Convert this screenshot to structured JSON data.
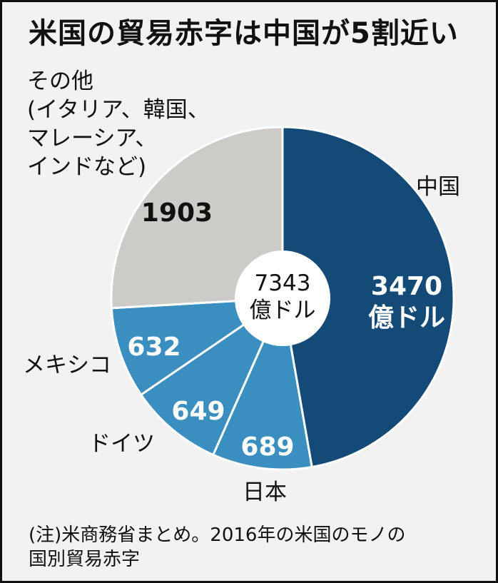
{
  "title": "米国の貿易赤字は中国が5割近い",
  "center_label": {
    "value": "7343",
    "unit": "億ドル"
  },
  "note": [
    "(注)米商務省まとめ。2016年の米国のモノの",
    "国別貿易赤字"
  ],
  "other_label": [
    "その他",
    "(イタリア、韓国、",
    "マレーシア、",
    "インドなど)"
  ],
  "chart_data": {
    "type": "pie",
    "style": "donut",
    "title": "米国の貿易赤字は中国が5割近い",
    "total": 7343,
    "unit": "億ドル",
    "slices": [
      {
        "name": "中国",
        "value": 3470,
        "value_label": "3470",
        "unit_label": "億ドル",
        "color": "#134a78",
        "text_color": "#ffffff"
      },
      {
        "name": "日本",
        "value": 689,
        "value_label": "689",
        "color": "#3a8ec0",
        "text_color": "#ffffff"
      },
      {
        "name": "ドイツ",
        "value": 649,
        "value_label": "649",
        "color": "#3a8ec0",
        "text_color": "#ffffff"
      },
      {
        "name": "メキシコ",
        "value": 632,
        "value_label": "632",
        "color": "#3a8ec0",
        "text_color": "#ffffff"
      },
      {
        "name": "その他",
        "value": 1903,
        "value_label": "1903",
        "color": "#cdcbc8",
        "text_color": "#111111"
      }
    ]
  }
}
